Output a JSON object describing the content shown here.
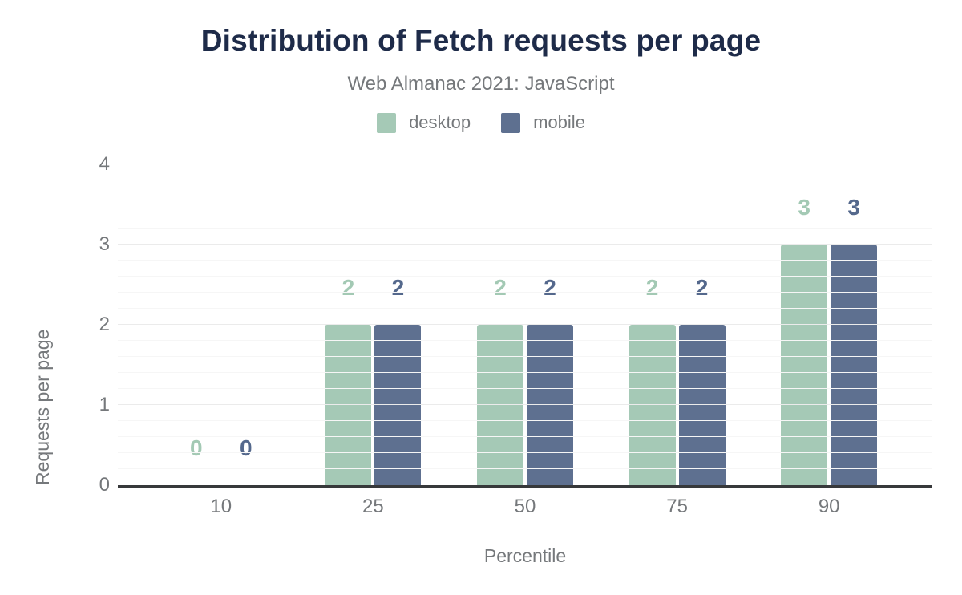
{
  "header": {
    "title": "Distribution of Fetch requests per page",
    "subtitle": "Web Almanac 2021: JavaScript"
  },
  "axes": {
    "x_title": "Percentile",
    "y_title": "Requests per page"
  },
  "colors": {
    "title": "#1e2b49",
    "axis_text": "#75787b",
    "baseline": "#37393b",
    "grid_major": "#ebebeb",
    "grid_minor": "#f6f6f6",
    "desktop": "#a5c9b6",
    "mobile": "#5e7090"
  },
  "chart_data": {
    "type": "bar",
    "title": "Distribution of Fetch requests per page",
    "subtitle": "Web Almanac 2021: JavaScript",
    "categories": [
      "10",
      "25",
      "50",
      "75",
      "90"
    ],
    "series": [
      {
        "name": "desktop",
        "color": "#a5c9b6",
        "label_color": "#a3c9b4",
        "values": [
          0,
          2,
          2,
          2,
          3
        ]
      },
      {
        "name": "mobile",
        "color": "#5e7090",
        "label_color": "#54688c",
        "values": [
          0,
          2,
          2,
          2,
          3
        ]
      }
    ],
    "xlabel": "Percentile",
    "ylabel": "Requests per page",
    "ylim": [
      0,
      4
    ],
    "y_ticks": [
      0,
      1,
      2,
      3,
      4
    ],
    "y_minor_step": 0.2,
    "grid": "horizontal",
    "legend_position": "top",
    "value_labels": true
  }
}
